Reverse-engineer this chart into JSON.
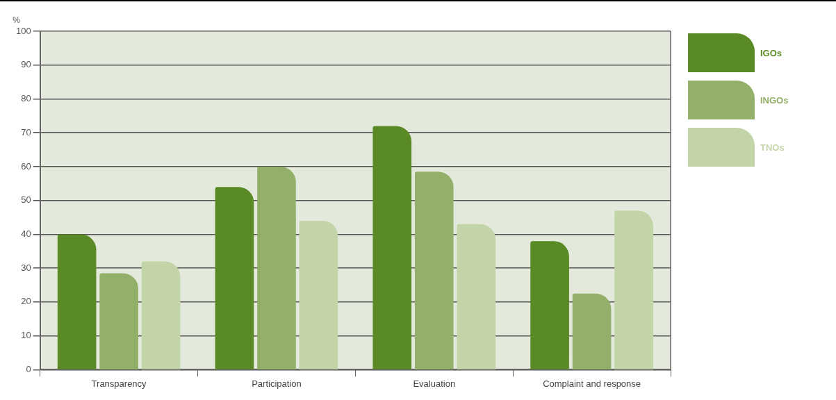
{
  "chart_data": {
    "type": "bar",
    "ylabel": "%",
    "categories": [
      "Transparency",
      "Participation",
      "Evaluation",
      "Complaint and response"
    ],
    "series": [
      {
        "name": "IGOs",
        "color": "#5a8a26",
        "values": [
          40,
          54,
          72,
          38
        ]
      },
      {
        "name": "INGOs",
        "color": "#93b06a",
        "values": [
          28.5,
          60,
          58.5,
          22.5
        ]
      },
      {
        "name": "TNOs",
        "color": "#c3d4a8",
        "values": [
          32,
          44,
          43,
          47
        ]
      }
    ],
    "ylim": [
      0,
      100
    ],
    "yticks": [
      0,
      10,
      20,
      30,
      40,
      50,
      60,
      70,
      80,
      90,
      100
    ],
    "grid": "y",
    "legend": "top right"
  }
}
